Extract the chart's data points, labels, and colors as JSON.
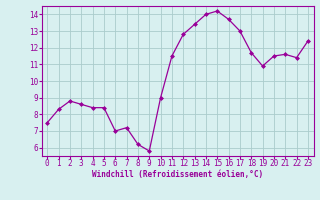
{
  "x": [
    0,
    1,
    2,
    3,
    4,
    5,
    6,
    7,
    8,
    9,
    10,
    11,
    12,
    13,
    14,
    15,
    16,
    17,
    18,
    19,
    20,
    21,
    22,
    23
  ],
  "y": [
    7.5,
    8.3,
    8.8,
    8.6,
    8.4,
    8.4,
    7.0,
    7.2,
    6.2,
    5.8,
    9.0,
    11.5,
    12.8,
    13.4,
    14.0,
    14.2,
    13.7,
    13.0,
    11.7,
    10.9,
    11.5,
    11.6,
    11.4,
    12.4
  ],
  "xlim": [
    -0.5,
    23.5
  ],
  "ylim": [
    5.5,
    14.5
  ],
  "yticks": [
    6,
    7,
    8,
    9,
    10,
    11,
    12,
    13,
    14
  ],
  "xticks": [
    0,
    1,
    2,
    3,
    4,
    5,
    6,
    7,
    8,
    9,
    10,
    11,
    12,
    13,
    14,
    15,
    16,
    17,
    18,
    19,
    20,
    21,
    22,
    23
  ],
  "xlabel": "Windchill (Refroidissement éolien,°C)",
  "line_color": "#990099",
  "marker": "D",
  "marker_size": 2.0,
  "bg_color": "#d8f0f0",
  "grid_color": "#aacccc",
  "label_color": "#990099",
  "tick_color": "#990099",
  "tick_fontsize": 5.5,
  "xlabel_fontsize": 5.5
}
